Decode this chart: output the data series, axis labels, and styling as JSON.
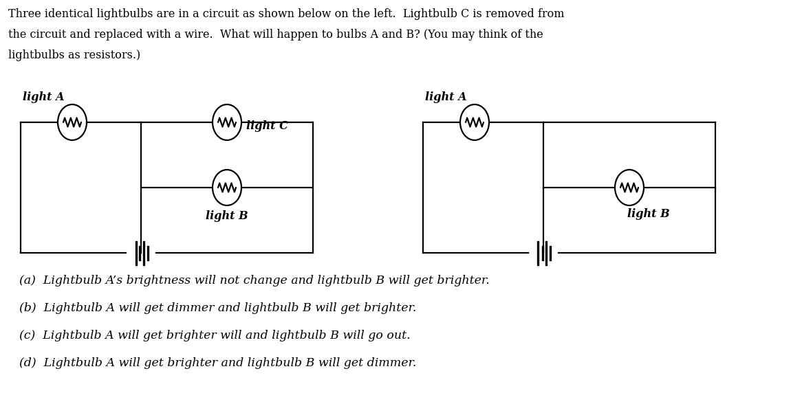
{
  "question_text_lines": [
    "Three identical lightbulbs are in a circuit as shown below on the left.  Lightbulb C is removed from",
    "the circuit and replaced with a wire.  What will happen to bulbs A and B? (You may think of the",
    "lightbulbs as resistors.)"
  ],
  "options": [
    "(a)  Lightbulb A’s brightness will not change and lightbulb B will get brighter.",
    "(b)  Lightbulb A will get dimmer and lightbulb B will get brighter.",
    "(c)  Lightbulb A will get brighter will and lightbulb B will go out.",
    "(d)  Lightbulb A will get brighter and lightbulb B will get dimmer."
  ],
  "bg_color": "#ffffff",
  "line_color": "#000000",
  "text_color": "#000000",
  "font_size_question": 11.5,
  "font_size_options": 12.5,
  "font_size_labels": 11.5,
  "lw": 1.6
}
